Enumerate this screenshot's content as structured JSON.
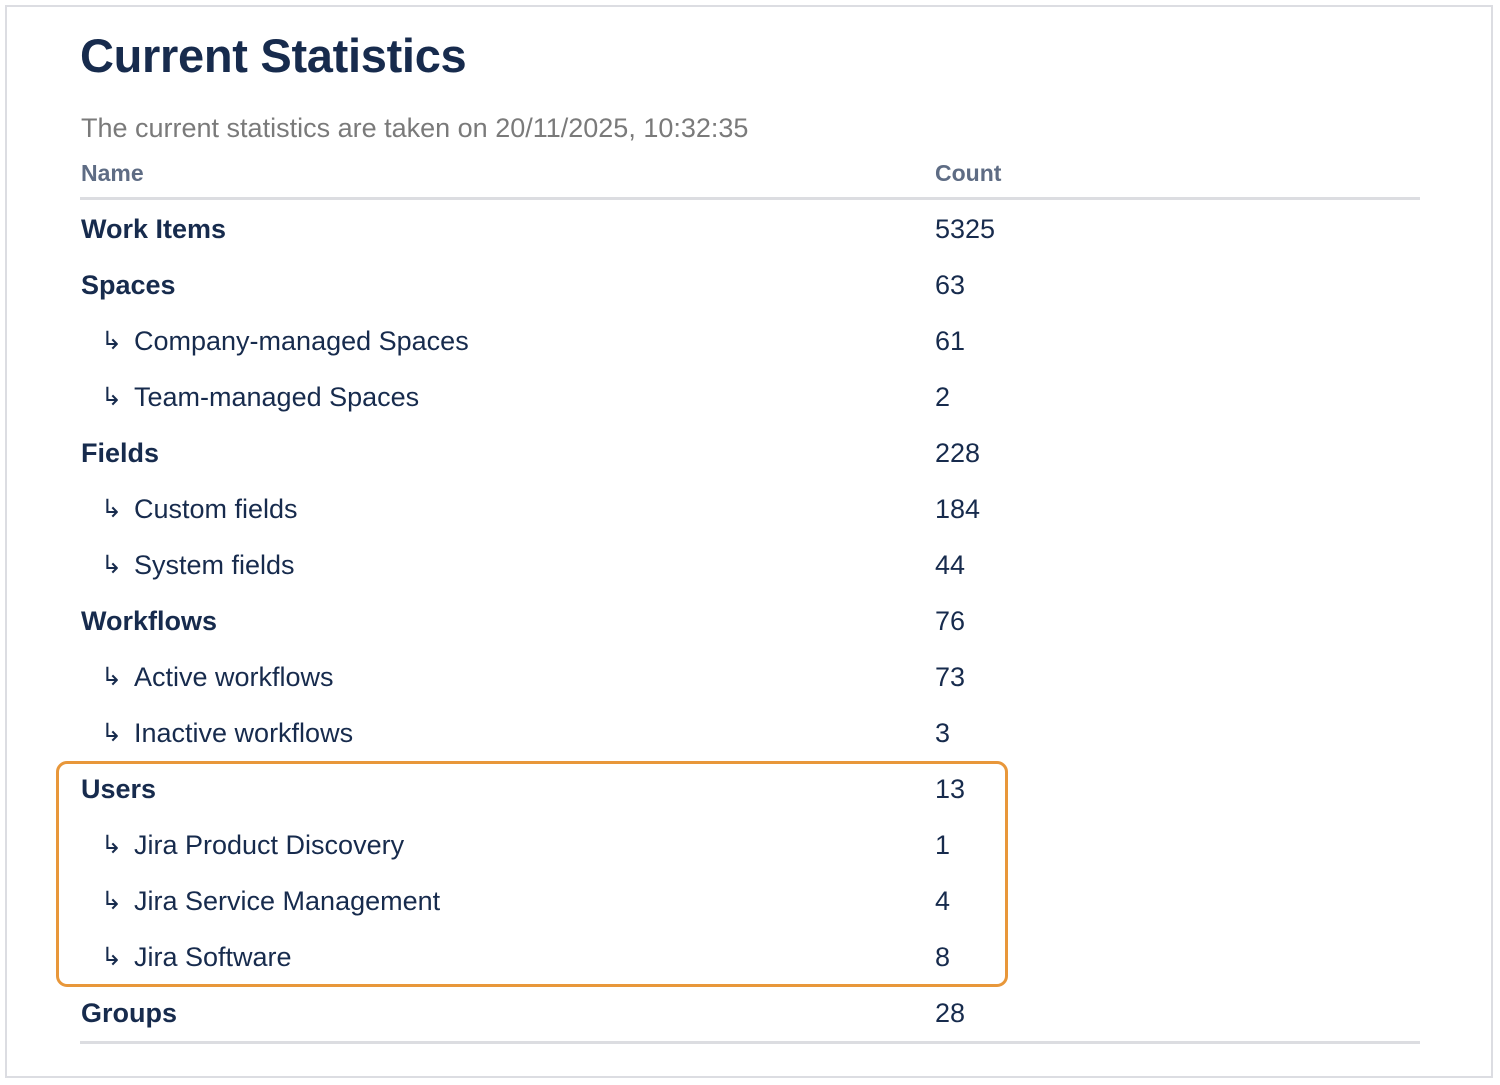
{
  "title": "Current Statistics",
  "subtitle": "The current statistics are taken on 20/11/2025, 10:32:35",
  "columns": {
    "name": "Name",
    "count": "Count"
  },
  "highlight_color": "#E8973A",
  "rows": [
    {
      "name": "Work Items",
      "count": "5325",
      "level": "parent"
    },
    {
      "name": "Spaces",
      "count": "63",
      "level": "parent"
    },
    {
      "name": "Company-managed Spaces",
      "count": "61",
      "level": "child"
    },
    {
      "name": "Team-managed Spaces",
      "count": "2",
      "level": "child"
    },
    {
      "name": "Fields",
      "count": "228",
      "level": "parent"
    },
    {
      "name": "Custom fields",
      "count": "184",
      "level": "child"
    },
    {
      "name": "System fields",
      "count": "44",
      "level": "child"
    },
    {
      "name": "Workflows",
      "count": "76",
      "level": "parent"
    },
    {
      "name": "Active workflows",
      "count": "73",
      "level": "child"
    },
    {
      "name": "Inactive workflows",
      "count": "3",
      "level": "child"
    },
    {
      "name": "Users",
      "count": "13",
      "level": "parent"
    },
    {
      "name": "Jira Product Discovery",
      "count": "1",
      "level": "child"
    },
    {
      "name": "Jira Service Management",
      "count": "4",
      "level": "child"
    },
    {
      "name": "Jira Software",
      "count": "8",
      "level": "child"
    },
    {
      "name": "Groups",
      "count": "28",
      "level": "parent"
    }
  ]
}
